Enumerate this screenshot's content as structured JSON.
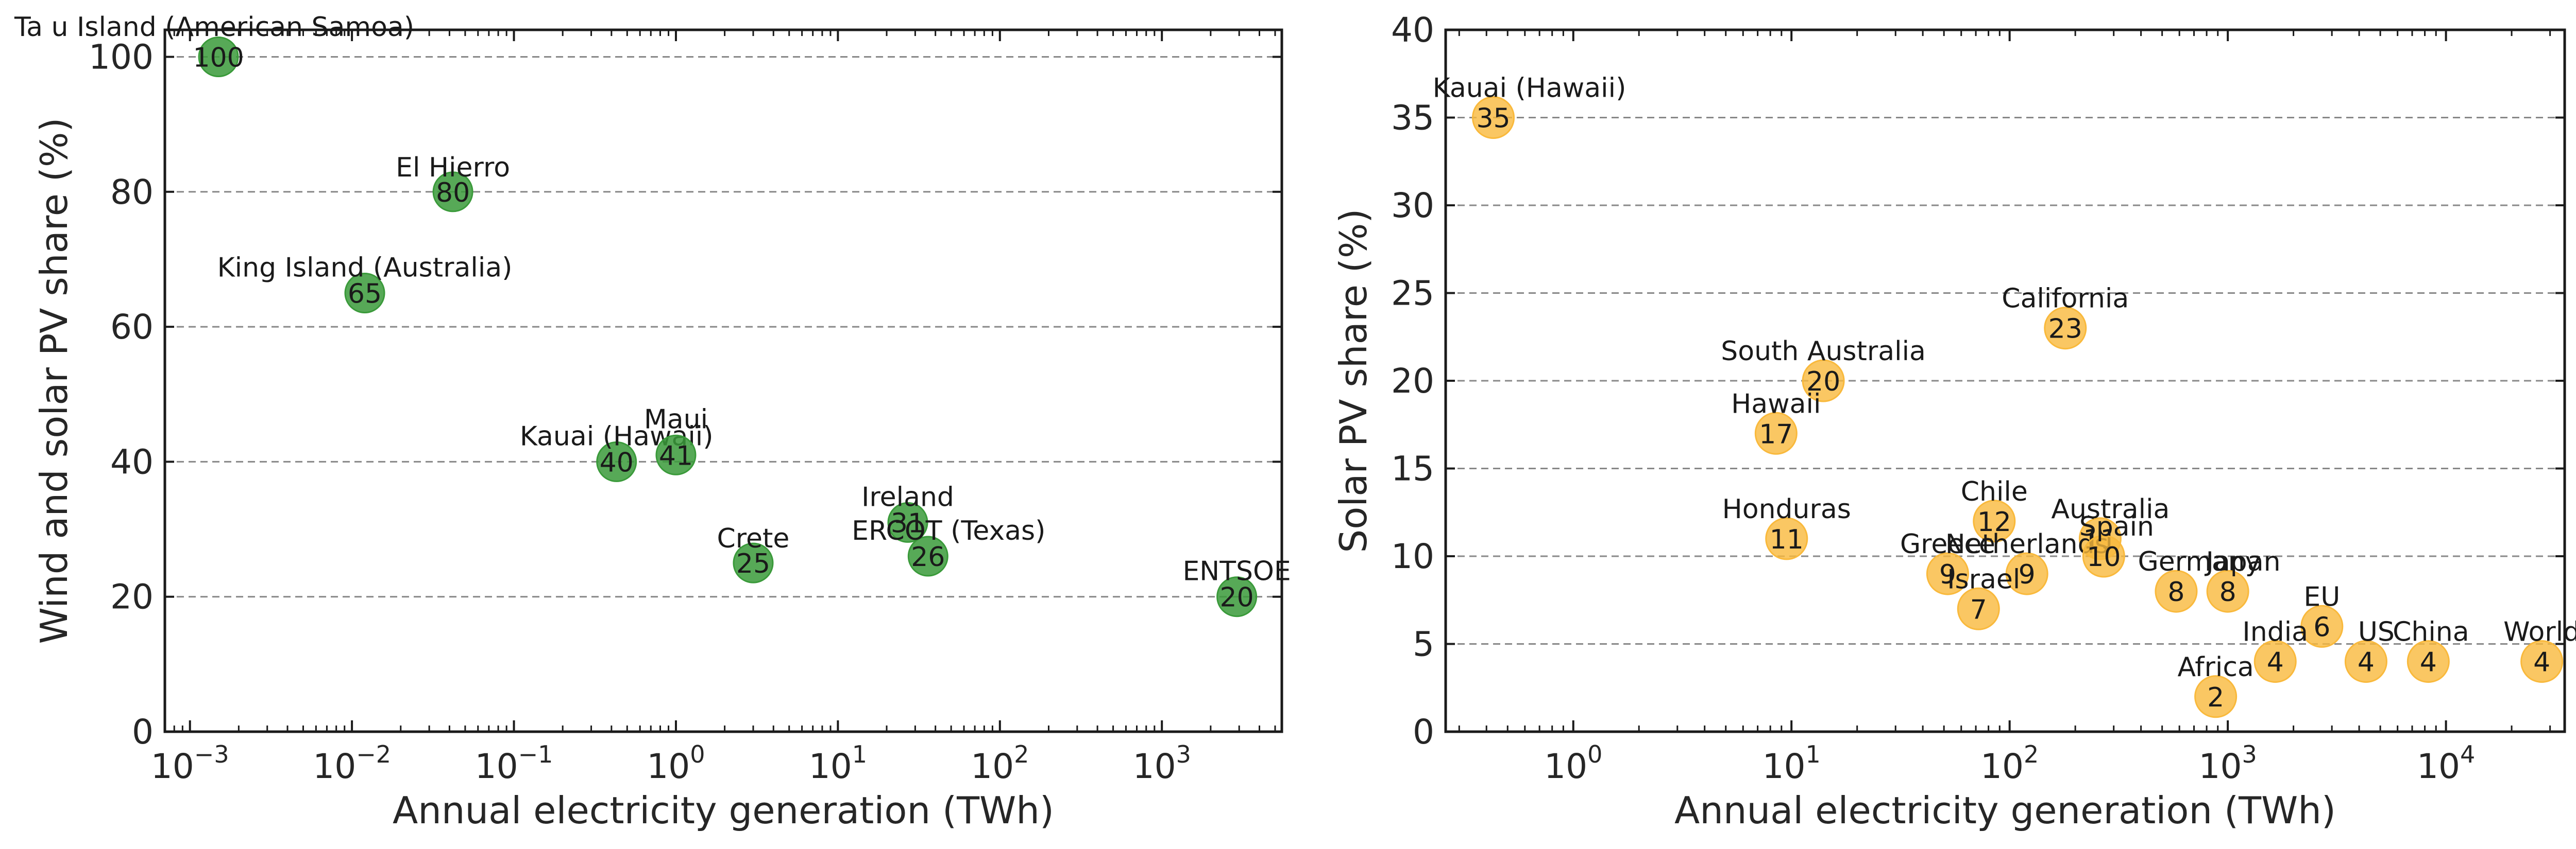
{
  "chart_data": [
    {
      "type": "scatter",
      "xscale": "log",
      "xlim": [
        0.0007,
        5500
      ],
      "ylim": [
        0,
        104
      ],
      "xlabel": "Annual electricity generation (TWh)",
      "ylabel": "Wind and solar PV share (%)",
      "yticks": [
        0,
        20,
        40,
        60,
        80,
        100
      ],
      "xticks": [
        0.001,
        0.01,
        0.1,
        1,
        10,
        100,
        1000
      ],
      "xtick_exponents": [
        "−3",
        "−2",
        "−1",
        "0",
        "1",
        "2",
        "3"
      ],
      "xtick_base": "10",
      "grid": "horizontal dashed",
      "marker_color": "#3a9a3a",
      "points": [
        {
          "name": "Ta u Island (American Samoa)",
          "x": 0.0015,
          "y": 100,
          "label": "100"
        },
        {
          "name": "El Hierro",
          "x": 0.042,
          "y": 80,
          "label": "80"
        },
        {
          "name": "King Island (Australia)",
          "x": 0.012,
          "y": 65,
          "label": "65"
        },
        {
          "name": "Kauai (Hawaii)",
          "x": 0.43,
          "y": 40,
          "label": "40"
        },
        {
          "name": "Maui",
          "x": 1.0,
          "y": 41,
          "label": "41"
        },
        {
          "name": "Crete",
          "x": 3.0,
          "y": 25,
          "label": "25"
        },
        {
          "name": "Ireland",
          "x": 27,
          "y": 31,
          "label": "31"
        },
        {
          "name": "ERCOT (Texas)",
          "x": 36,
          "y": 26,
          "label": "26"
        },
        {
          "name": "ENTSOE",
          "x": 2900,
          "y": 20,
          "label": "20"
        }
      ]
    },
    {
      "type": "scatter",
      "xscale": "log",
      "xlim": [
        0.26,
        35000
      ],
      "ylim": [
        0,
        40
      ],
      "xlabel": "Annual electricity generation (TWh)",
      "ylabel": "Solar PV share (%)",
      "yticks": [
        0,
        5,
        10,
        15,
        20,
        25,
        30,
        35,
        40
      ],
      "xticks": [
        1,
        10,
        100,
        1000,
        10000
      ],
      "xtick_exponents": [
        "0",
        "1",
        "2",
        "3",
        "4"
      ],
      "xtick_base": "10",
      "grid": "horizontal dashed",
      "marker_color": "#f9b93c",
      "points": [
        {
          "name": "Kauai (Hawaii)",
          "x": 0.43,
          "y": 35,
          "label": "35"
        },
        {
          "name": "California",
          "x": 180,
          "y": 23,
          "label": "23"
        },
        {
          "name": "South Australia",
          "x": 14,
          "y": 20,
          "label": "20"
        },
        {
          "name": "Hawaii",
          "x": 8.5,
          "y": 17,
          "label": "17"
        },
        {
          "name": "Honduras",
          "x": 9.5,
          "y": 11,
          "label": "11"
        },
        {
          "name": "Chile",
          "x": 85,
          "y": 12,
          "label": "12"
        },
        {
          "name": "Australia",
          "x": 260,
          "y": 11,
          "label": "11"
        },
        {
          "name": "Greece",
          "x": 52,
          "y": 9,
          "label": "9"
        },
        {
          "name": "Netherlands",
          "x": 120,
          "y": 9,
          "label": "9"
        },
        {
          "name": "Spain",
          "x": 270,
          "y": 10,
          "label": "10"
        },
        {
          "name": "Israel",
          "x": 72,
          "y": 7,
          "label": "7"
        },
        {
          "name": "Germany",
          "x": 580,
          "y": 8,
          "label": "8"
        },
        {
          "name": "Japan",
          "x": 1000,
          "y": 8,
          "label": "8"
        },
        {
          "name": "EU",
          "x": 2700,
          "y": 6,
          "label": "6"
        },
        {
          "name": "India",
          "x": 1650,
          "y": 4,
          "label": "4"
        },
        {
          "name": "US",
          "x": 4300,
          "y": 4,
          "label": "4"
        },
        {
          "name": "China",
          "x": 8300,
          "y": 4,
          "label": "4"
        },
        {
          "name": "World",
          "x": 27500,
          "y": 4,
          "label": "4"
        },
        {
          "name": "Africa",
          "x": 880,
          "y": 2,
          "label": "2"
        }
      ]
    }
  ]
}
